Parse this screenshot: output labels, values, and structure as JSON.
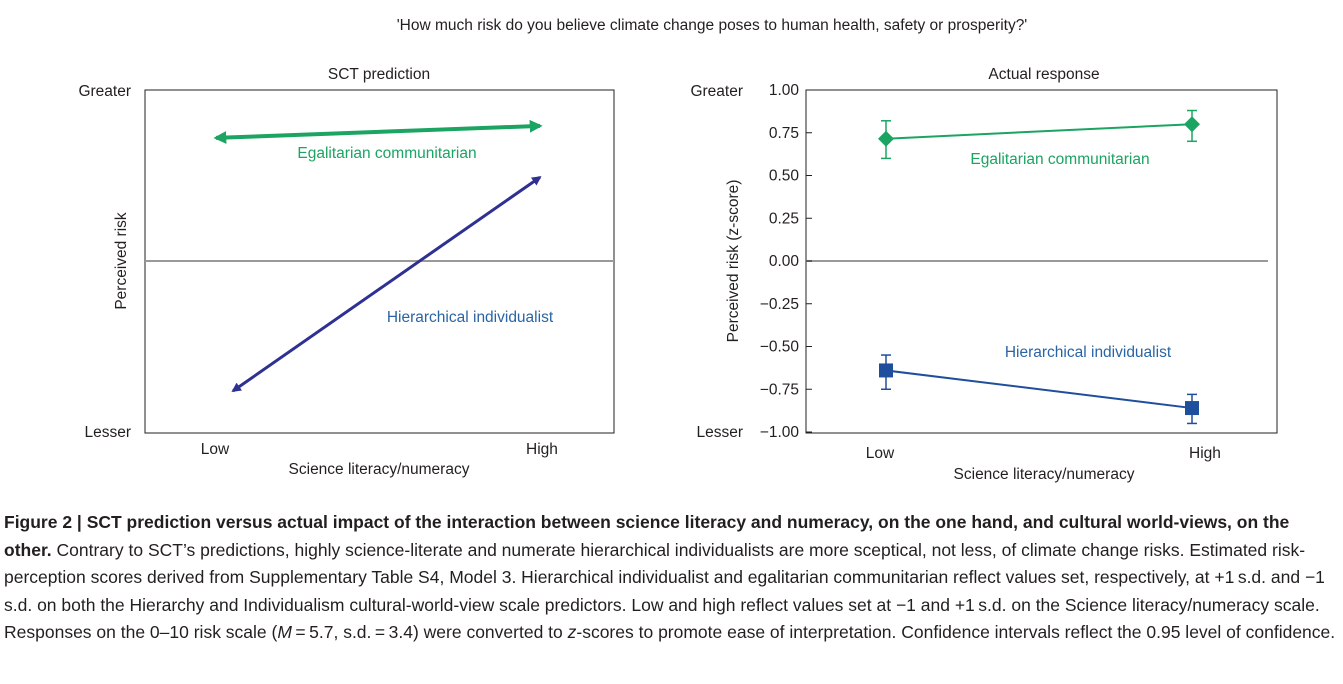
{
  "figure": {
    "question": "'How much risk do you believe climate change poses to human health, safety or prosperity?'",
    "colors": {
      "egalitarian": "#1ba462",
      "hierarchical": "#2e3192",
      "label_hier": "#2a64a4",
      "zero_line": "#999999",
      "frame": "#231f20"
    }
  },
  "chart_data": [
    {
      "type": "line",
      "title": "SCT prediction",
      "xlabel": "Science literacy/numeracy",
      "ylabel": "Perceived risk",
      "categories": [
        "Low",
        "High"
      ],
      "y_top_label": "Greater",
      "y_bottom_label": "Lesser",
      "ylim": [
        -1.0,
        1.0
      ],
      "series": [
        {
          "name": "Egalitarian communitarian",
          "values": [
            0.72,
            0.79
          ],
          "style": "double-arrow",
          "color": "#1ba462"
        },
        {
          "name": "Hierarchical individualist",
          "values": [
            -0.76,
            0.49
          ],
          "style": "double-arrow",
          "color": "#2e3192"
        }
      ]
    },
    {
      "type": "line",
      "title": "Actual response",
      "xlabel": "Science literacy/numeracy",
      "ylabel": "Perceived risk (z-score)",
      "categories": [
        "Low",
        "High"
      ],
      "y_top_label": "Greater",
      "y_bottom_label": "Lesser",
      "ylim": [
        -1.0,
        1.0
      ],
      "yticks": [
        "1.00",
        "0.75",
        "0.50",
        "0.25",
        "0.00",
        "−0.25",
        "−0.50",
        "−0.75",
        "−1.00"
      ],
      "ytick_values": [
        1.0,
        0.75,
        0.5,
        0.25,
        0.0,
        -0.25,
        -0.5,
        -0.75,
        -1.0
      ],
      "series": [
        {
          "name": "Egalitarian communitarian",
          "values": [
            0.715,
            0.8
          ],
          "ci_low": [
            0.6,
            0.7
          ],
          "ci_high": [
            0.82,
            0.88
          ],
          "marker": "diamond",
          "color": "#1ba462"
        },
        {
          "name": "Hierarchical individualist",
          "values": [
            -0.64,
            -0.86
          ],
          "ci_low": [
            -0.75,
            -0.95
          ],
          "ci_high": [
            -0.55,
            -0.78
          ],
          "marker": "square",
          "color": "#1f4e9c"
        }
      ]
    }
  ],
  "caption": {
    "bold": "Figure 2 | SCT prediction versus actual impact of the interaction between science literacy and numeracy, on the one hand, and cultural world-views, on the other.",
    "seg1": " Contrary to SCT’s predictions, highly science-literate and numerate hierarchical individualists are more sceptical, not less, of climate change risks. Estimated risk-perception scores derived from Supplementary Table S4, Model 3. Hierarchical individualist and egalitarian communitarian reflect values set, respectively, at +1 s.d. and −1 s.d. on both the Hierarchy and Individualism cultural-world-view scale predictors. Low and high reflect values set at −1 and +1 s.d. on the Science literacy/numeracy scale. Responses on the 0–10 risk scale (",
    "m_italic": "M",
    "seg2": " = 5.7, s.d. = 3.4) were converted to ",
    "z_italic": "z",
    "seg3": "-scores to promote ease of interpretation. Confidence intervals reflect the 0.95 level of confidence."
  }
}
